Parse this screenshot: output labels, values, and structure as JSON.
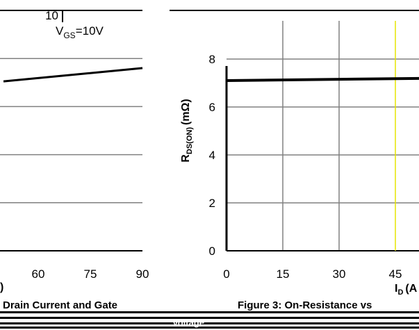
{
  "chart_data": [
    {
      "type": "line",
      "title": "",
      "xlabel": ")",
      "ylabel": "",
      "xlim": [
        50,
        90
      ],
      "ylim": [
        0,
        10
      ],
      "x_ticks": [
        60,
        75,
        90
      ],
      "y_ticks": [
        10
      ],
      "grid": true,
      "annotations": [
        {
          "text": "V",
          "subscript": "GS",
          "suffix": "=10V"
        }
      ],
      "series": [
        {
          "values": [
            {
              "x": 50,
              "y": 7.05
            },
            {
              "x": 90,
              "y": 7.6
            }
          ],
          "color": "#000000"
        }
      ],
      "caption": "Drain Current and Gate"
    },
    {
      "type": "line",
      "title": "",
      "xlabel": "I",
      "xlabel_sub": "D",
      "xlabel_unit": "(A",
      "ylabel_main": "R",
      "ylabel_sub": "DS(ON)",
      "ylabel_unit": "(mΩ)",
      "xlim": [
        0,
        55
      ],
      "ylim": [
        0,
        10
      ],
      "x_ticks": [
        0,
        15,
        30,
        45
      ],
      "y_ticks": [
        0,
        2,
        4,
        6,
        8
      ],
      "grid": true,
      "series": [
        {
          "values": [
            {
              "x": 0,
              "y": 7.1
            },
            {
              "x": 55,
              "y": 7.2
            }
          ],
          "color": "#000000"
        }
      ],
      "caption": "Figure 3: On-Resistance vs",
      "footer_text": "Voltage"
    }
  ]
}
